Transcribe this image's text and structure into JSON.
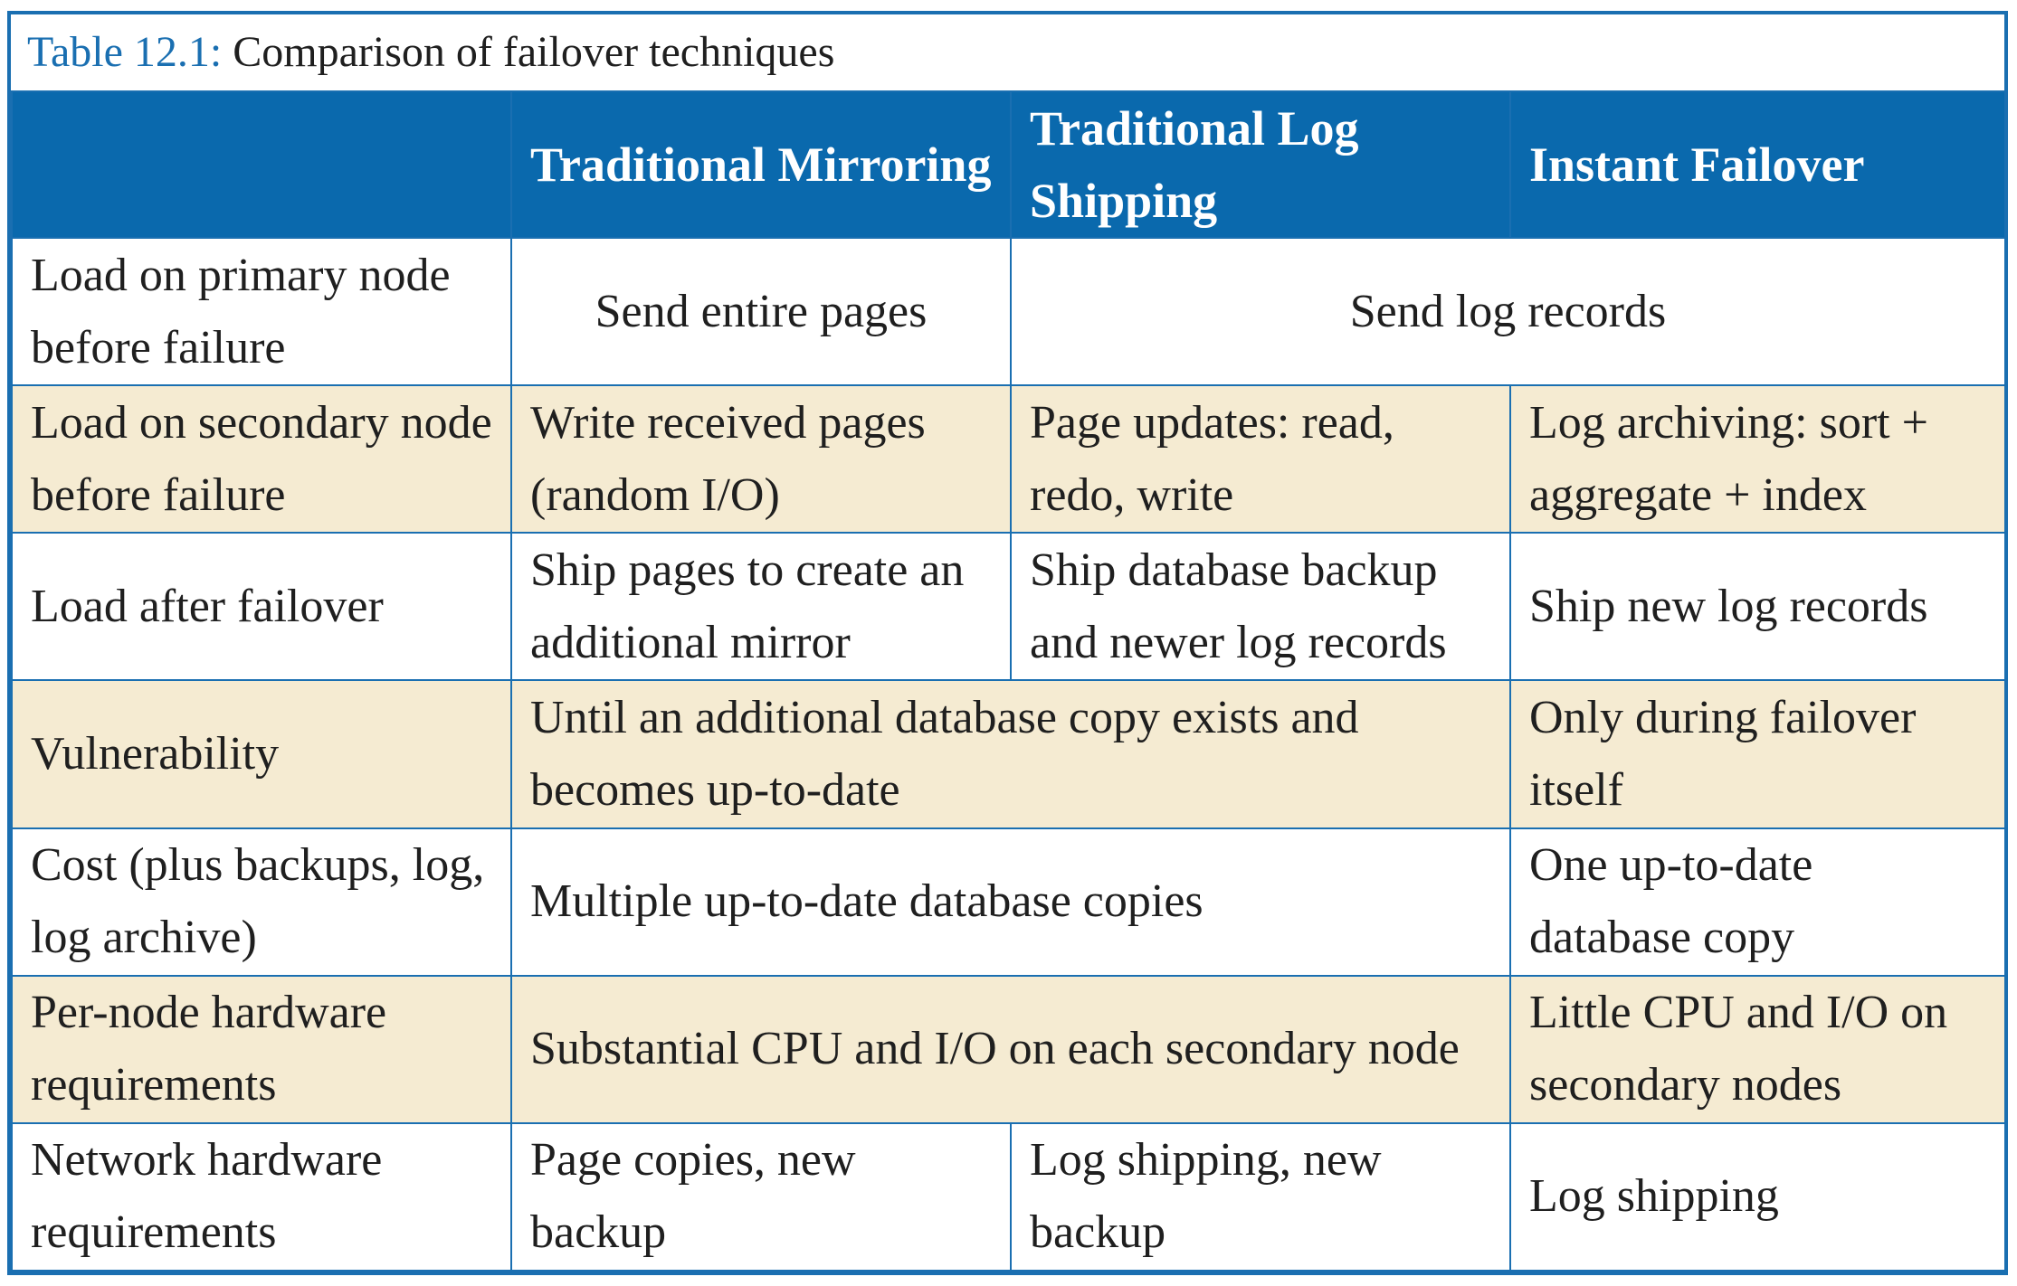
{
  "caption": {
    "label": "Table 12.1:",
    "text": "Comparison of failover techniques"
  },
  "header": {
    "col0": "",
    "col1": "Traditional Mirroring",
    "col2": "Traditional Log Shipping",
    "col3": "Instant Failover"
  },
  "rows": [
    {
      "label": "Load on primary node before failure",
      "mirroring": "Send entire pages",
      "log_shipping_and_instant": "Send log records"
    },
    {
      "label": "Load on secondary node before failure",
      "mirroring": "Write received pages (random I/O)",
      "log_shipping": "Page updates: read, redo, write",
      "instant": "Log archiving: sort + aggregate + index"
    },
    {
      "label": "Load after failover",
      "mirroring": "Ship pages to create an additional mirror",
      "log_shipping": "Ship database backup and newer log records",
      "instant": "Ship new log records"
    },
    {
      "label": "Vulnerability",
      "traditional": "Until an additional database copy exists and becomes up-to-date",
      "instant": "Only during failover itself"
    },
    {
      "label": "Cost (plus backups, log, log archive)",
      "traditional": "Multiple up-to-date database copies",
      "instant": "One up-to-date database copy"
    },
    {
      "label": "Per-node hardware requirements",
      "traditional": "Substantial CPU and I/O on each secondary node",
      "instant": "Little CPU and I/O on secondary nodes"
    },
    {
      "label": "Network hardware requirements",
      "mirroring": "Page copies, new backup",
      "log_shipping": "Log shipping, new backup",
      "instant": "Log shipping"
    }
  ],
  "colors": {
    "accent": "#1a6fb1",
    "header_bg": "#0a69ad",
    "shaded_row": "#f5ebd2"
  }
}
